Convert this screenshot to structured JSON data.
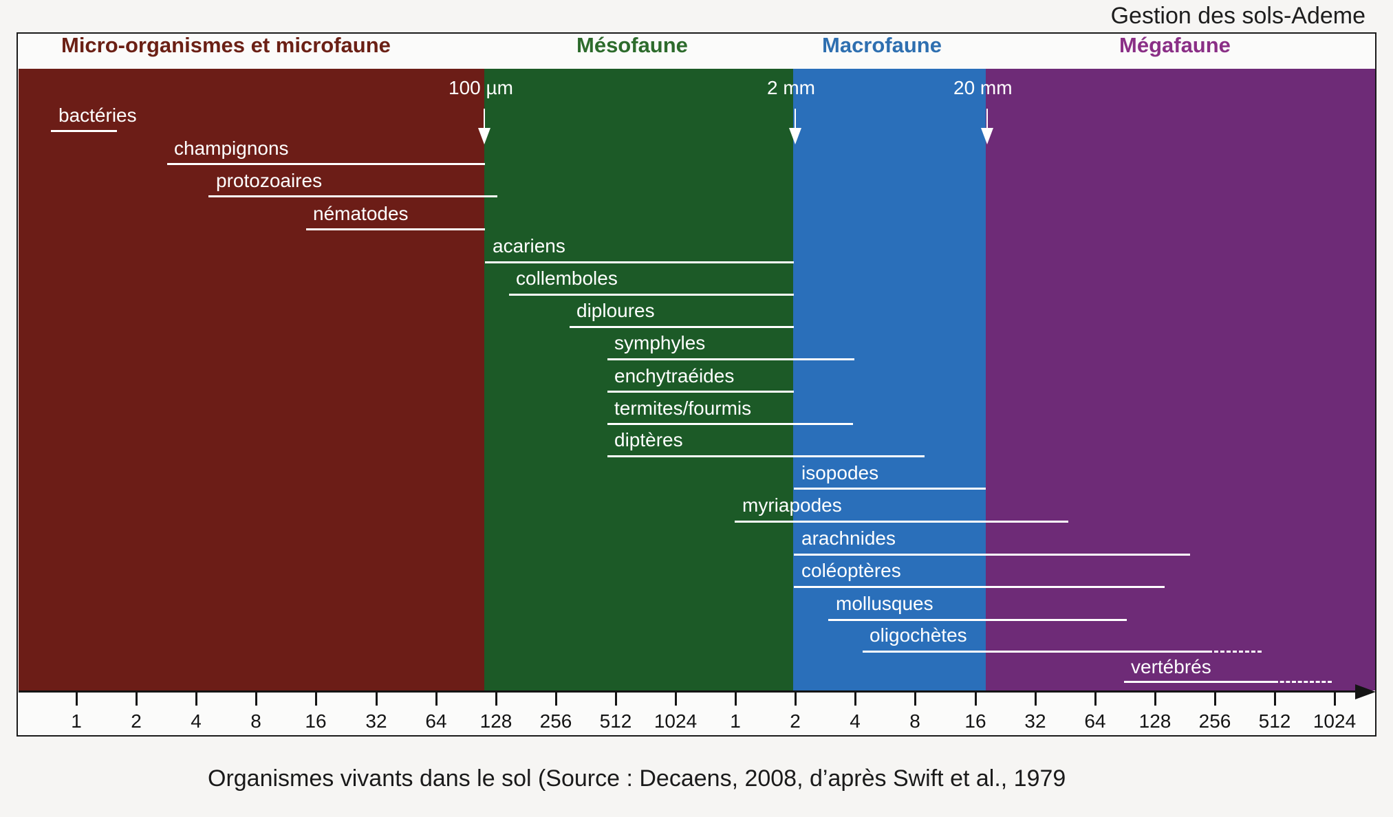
{
  "source": "Gestion des sols-Ademe",
  "zones": {
    "micro": {
      "title": "Micro-organismes et microfaune",
      "color": "#6c1d17",
      "title_color": "#6b2015"
    },
    "meso": {
      "title": "Mésofaune",
      "color": "#1c5a27",
      "title_color": "#2d6b2c"
    },
    "macro": {
      "title": "Macrofaune",
      "color": "#2a6fba",
      "title_color": "#2e6fb0"
    },
    "mega": {
      "title": "Mégafaune",
      "color": "#6e2b77",
      "title_color": "#8a2f86"
    }
  },
  "thresholds": [
    "100 µm",
    "2 mm",
    "20 mm"
  ],
  "organisms": [
    {
      "name": "bactéries"
    },
    {
      "name": "champignons"
    },
    {
      "name": "protozoaires"
    },
    {
      "name": "nématodes"
    },
    {
      "name": "acariens"
    },
    {
      "name": "collemboles"
    },
    {
      "name": "diploures"
    },
    {
      "name": "symphyles"
    },
    {
      "name": "enchytraéides"
    },
    {
      "name": "termites/fourmis"
    },
    {
      "name": "diptères"
    },
    {
      "name": "isopodes"
    },
    {
      "name": "myriapodes"
    },
    {
      "name": "arachnides"
    },
    {
      "name": "coléoptères"
    },
    {
      "name": "mollusques"
    },
    {
      "name": "oligochètes"
    },
    {
      "name": "vertébrés"
    }
  ],
  "axis_ticks": [
    "1",
    "2",
    "4",
    "8",
    "16",
    "32",
    "64",
    "128",
    "256",
    "512",
    "1024",
    "1",
    "2",
    "4",
    "8",
    "16",
    "32",
    "64",
    "128",
    "256",
    "512",
    "1024"
  ],
  "caption": "Organismes vivants dans le sol (Source : Decaens, 2008, d’après Swift et al., 1979"
}
